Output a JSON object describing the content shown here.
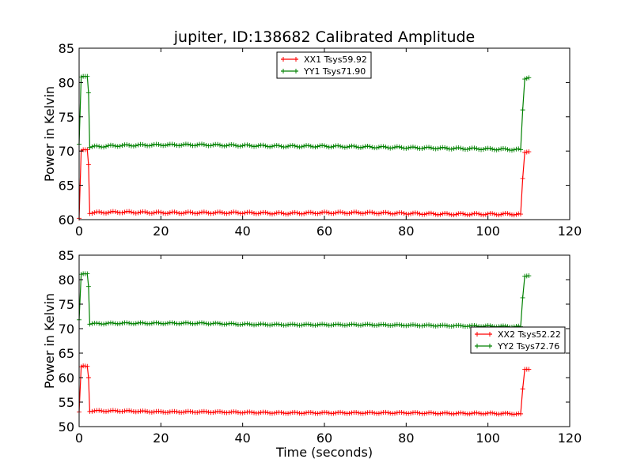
{
  "chart_data": [
    {
      "type": "line",
      "title": "jupiter, ID:138682 Calibrated Amplitude",
      "xlabel": "",
      "ylabel": "Power in Kelvin",
      "xlim": [
        0,
        120
      ],
      "ylim": [
        60,
        85
      ],
      "xticks": [
        "0",
        "20",
        "40",
        "60",
        "80",
        "100",
        "120"
      ],
      "yticks": [
        "60",
        "65",
        "70",
        "75",
        "80",
        "85"
      ],
      "legend_position": "upper center",
      "series": [
        {
          "name": "XX1 Tsys59.92",
          "color": "#ff0000",
          "points": [
            [
              0,
              60.2
            ],
            [
              0.5,
              70
            ],
            [
              1,
              70.2
            ],
            [
              2,
              70.2
            ],
            [
              2.3,
              68
            ],
            [
              2.6,
              61
            ],
            [
              10,
              61.1
            ],
            [
              20,
              61
            ],
            [
              30,
              61
            ],
            [
              40,
              61
            ],
            [
              50,
              60.9
            ],
            [
              60,
              61
            ],
            [
              70,
              61
            ],
            [
              80,
              60.9
            ],
            [
              90,
              60.8
            ],
            [
              100,
              60.8
            ],
            [
              108,
              60.8
            ],
            [
              108.5,
              66
            ],
            [
              109,
              69.8
            ],
            [
              110,
              69.9
            ]
          ]
        },
        {
          "name": "YY1 Tsys71.90",
          "color": "#008000",
          "points": [
            [
              0,
              71
            ],
            [
              0.5,
              80.8
            ],
            [
              1,
              80.9
            ],
            [
              2,
              80.9
            ],
            [
              2.3,
              78.5
            ],
            [
              2.6,
              70.6
            ],
            [
              10,
              70.8
            ],
            [
              20,
              70.9
            ],
            [
              30,
              70.9
            ],
            [
              40,
              70.8
            ],
            [
              50,
              70.7
            ],
            [
              60,
              70.7
            ],
            [
              70,
              70.6
            ],
            [
              80,
              70.5
            ],
            [
              90,
              70.4
            ],
            [
              100,
              70.3
            ],
            [
              108,
              70.2
            ],
            [
              108.5,
              76
            ],
            [
              109,
              80.5
            ],
            [
              110,
              80.7
            ]
          ]
        }
      ]
    },
    {
      "type": "line",
      "title": "",
      "xlabel": "Time (seconds)",
      "ylabel": "Power in Kelvin",
      "xlim": [
        0,
        120
      ],
      "ylim": [
        50,
        85
      ],
      "xticks": [
        "0",
        "20",
        "40",
        "60",
        "80",
        "100",
        "120"
      ],
      "yticks": [
        "50",
        "55",
        "60",
        "65",
        "70",
        "75",
        "80",
        "85"
      ],
      "legend_position": "center right",
      "series": [
        {
          "name": "XX2 Tsys52.22",
          "color": "#ff0000",
          "points": [
            [
              0,
              53
            ],
            [
              0.5,
              62.2
            ],
            [
              1,
              62.4
            ],
            [
              2,
              62.3
            ],
            [
              2.3,
              60
            ],
            [
              2.6,
              53.2
            ],
            [
              10,
              53.2
            ],
            [
              20,
              53
            ],
            [
              30,
              53
            ],
            [
              40,
              52.9
            ],
            [
              50,
              52.8
            ],
            [
              60,
              52.8
            ],
            [
              70,
              52.8
            ],
            [
              80,
              52.8
            ],
            [
              90,
              52.7
            ],
            [
              100,
              52.7
            ],
            [
              108,
              52.6
            ],
            [
              108.5,
              57.7
            ],
            [
              109,
              61.7
            ],
            [
              110,
              61.7
            ]
          ]
        },
        {
          "name": "YY2 Tsys72.76",
          "color": "#008000",
          "points": [
            [
              0,
              71.8
            ],
            [
              0.5,
              81.1
            ],
            [
              1,
              81.2
            ],
            [
              2,
              81.2
            ],
            [
              2.3,
              78.6
            ],
            [
              2.6,
              71
            ],
            [
              10,
              71.1
            ],
            [
              20,
              71.1
            ],
            [
              30,
              71.1
            ],
            [
              40,
              70.9
            ],
            [
              50,
              70.8
            ],
            [
              60,
              70.8
            ],
            [
              70,
              70.8
            ],
            [
              80,
              70.7
            ],
            [
              90,
              70.6
            ],
            [
              100,
              70.5
            ],
            [
              108,
              70.4
            ],
            [
              108.5,
              76.3
            ],
            [
              109,
              80.7
            ],
            [
              110,
              80.8
            ]
          ]
        }
      ]
    }
  ]
}
